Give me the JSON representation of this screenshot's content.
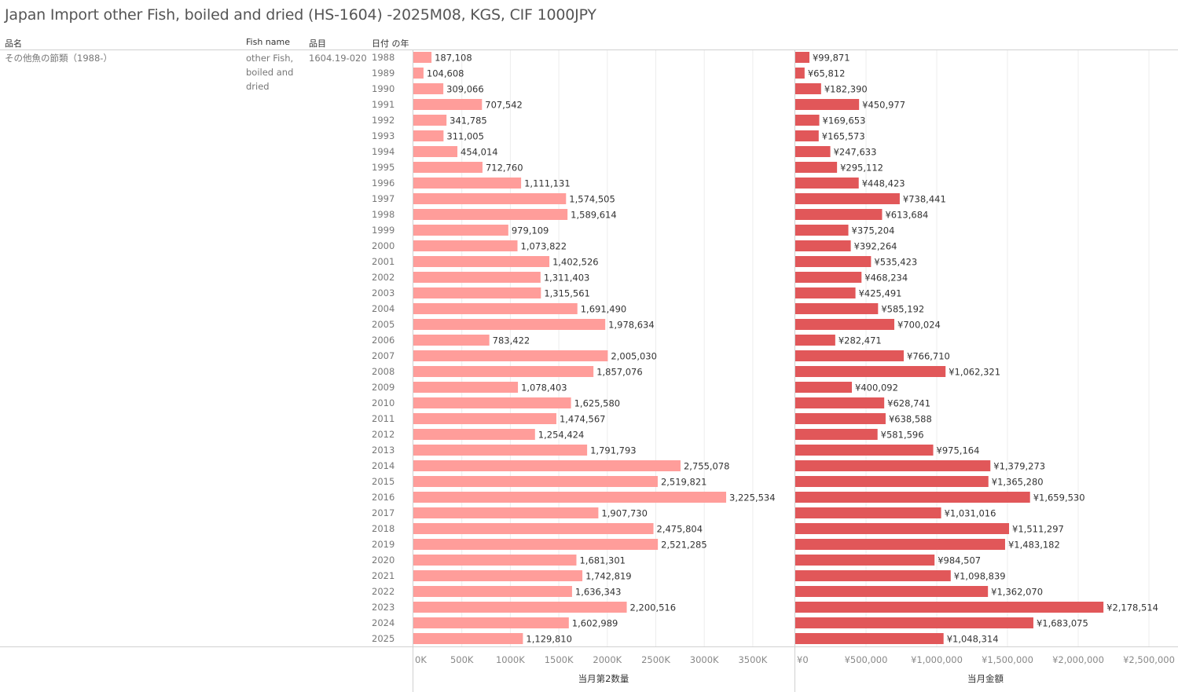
{
  "title": "Japan Import other Fish, boiled and dried (HS-1604) -2025M08, KGS, CIF 1000JPY",
  "headers": {
    "item_name": "品名",
    "fish_name": "Fish name",
    "item_code": "品目",
    "year": "日付 の年"
  },
  "row_dims": {
    "item_name": "その他魚の節類（1988-）",
    "fish_name_lines": [
      "other Fish,",
      "boiled and",
      "dried"
    ],
    "item_code": "1604.19-020"
  },
  "colors": {
    "quantity_bar": "#FF9D9A",
    "value_bar": "#E15759",
    "gridline": "#ececec",
    "divider": "#d0d0d0"
  },
  "chart_data": [
    {
      "type": "bar",
      "orientation": "horizontal",
      "name": "quantity",
      "xlabel": "当月第2数量",
      "xlim": [
        0,
        3500000
      ],
      "ticks": [
        0,
        500000,
        1000000,
        1500000,
        2000000,
        2500000,
        3000000,
        3500000
      ],
      "tick_labels": [
        "0K",
        "500K",
        "1000K",
        "1500K",
        "2000K",
        "2500K",
        "3000K",
        "3500K"
      ],
      "grid": true,
      "categories": [
        "1988",
        "1989",
        "1990",
        "1991",
        "1992",
        "1993",
        "1994",
        "1995",
        "1996",
        "1997",
        "1998",
        "1999",
        "2000",
        "2001",
        "2002",
        "2003",
        "2004",
        "2005",
        "2006",
        "2007",
        "2008",
        "2009",
        "2010",
        "2011",
        "2012",
        "2013",
        "2014",
        "2015",
        "2016",
        "2017",
        "2018",
        "2019",
        "2020",
        "2021",
        "2022",
        "2023",
        "2024",
        "2025"
      ],
      "values": [
        187108,
        104608,
        309066,
        707542,
        341785,
        311005,
        454014,
        712760,
        1111131,
        1574505,
        1589614,
        979109,
        1073822,
        1402526,
        1311403,
        1315561,
        1691490,
        1978634,
        783422,
        2005030,
        1857076,
        1078403,
        1625580,
        1474567,
        1254424,
        1791793,
        2755078,
        2519821,
        3225534,
        1907730,
        2475804,
        2521285,
        1681301,
        1742819,
        1636343,
        2200516,
        1602989,
        1129810
      ],
      "label_prefix": ""
    },
    {
      "type": "bar",
      "orientation": "horizontal",
      "name": "value",
      "xlabel": "当月金額",
      "xlim": [
        0,
        2500000
      ],
      "ticks": [
        0,
        500000,
        1000000,
        1500000,
        2000000,
        2500000
      ],
      "tick_labels": [
        "¥0",
        "¥500,000",
        "¥1,000,000",
        "¥1,500,000",
        "¥2,000,000",
        "¥2,500,000"
      ],
      "grid": true,
      "categories": [
        "1988",
        "1989",
        "1990",
        "1991",
        "1992",
        "1993",
        "1994",
        "1995",
        "1996",
        "1997",
        "1998",
        "1999",
        "2000",
        "2001",
        "2002",
        "2003",
        "2004",
        "2005",
        "2006",
        "2007",
        "2008",
        "2009",
        "2010",
        "2011",
        "2012",
        "2013",
        "2014",
        "2015",
        "2016",
        "2017",
        "2018",
        "2019",
        "2020",
        "2021",
        "2022",
        "2023",
        "2024",
        "2025"
      ],
      "values": [
        99871,
        65812,
        182390,
        450977,
        169653,
        165573,
        247633,
        295112,
        448423,
        738441,
        613684,
        375204,
        392264,
        535423,
        468234,
        425491,
        585192,
        700024,
        282471,
        766710,
        1062321,
        400092,
        628741,
        638588,
        581596,
        975164,
        1379273,
        1365280,
        1659530,
        1031016,
        1511297,
        1483182,
        984507,
        1098839,
        1362070,
        2178514,
        1683075,
        1048314
      ],
      "label_prefix": "¥"
    }
  ]
}
